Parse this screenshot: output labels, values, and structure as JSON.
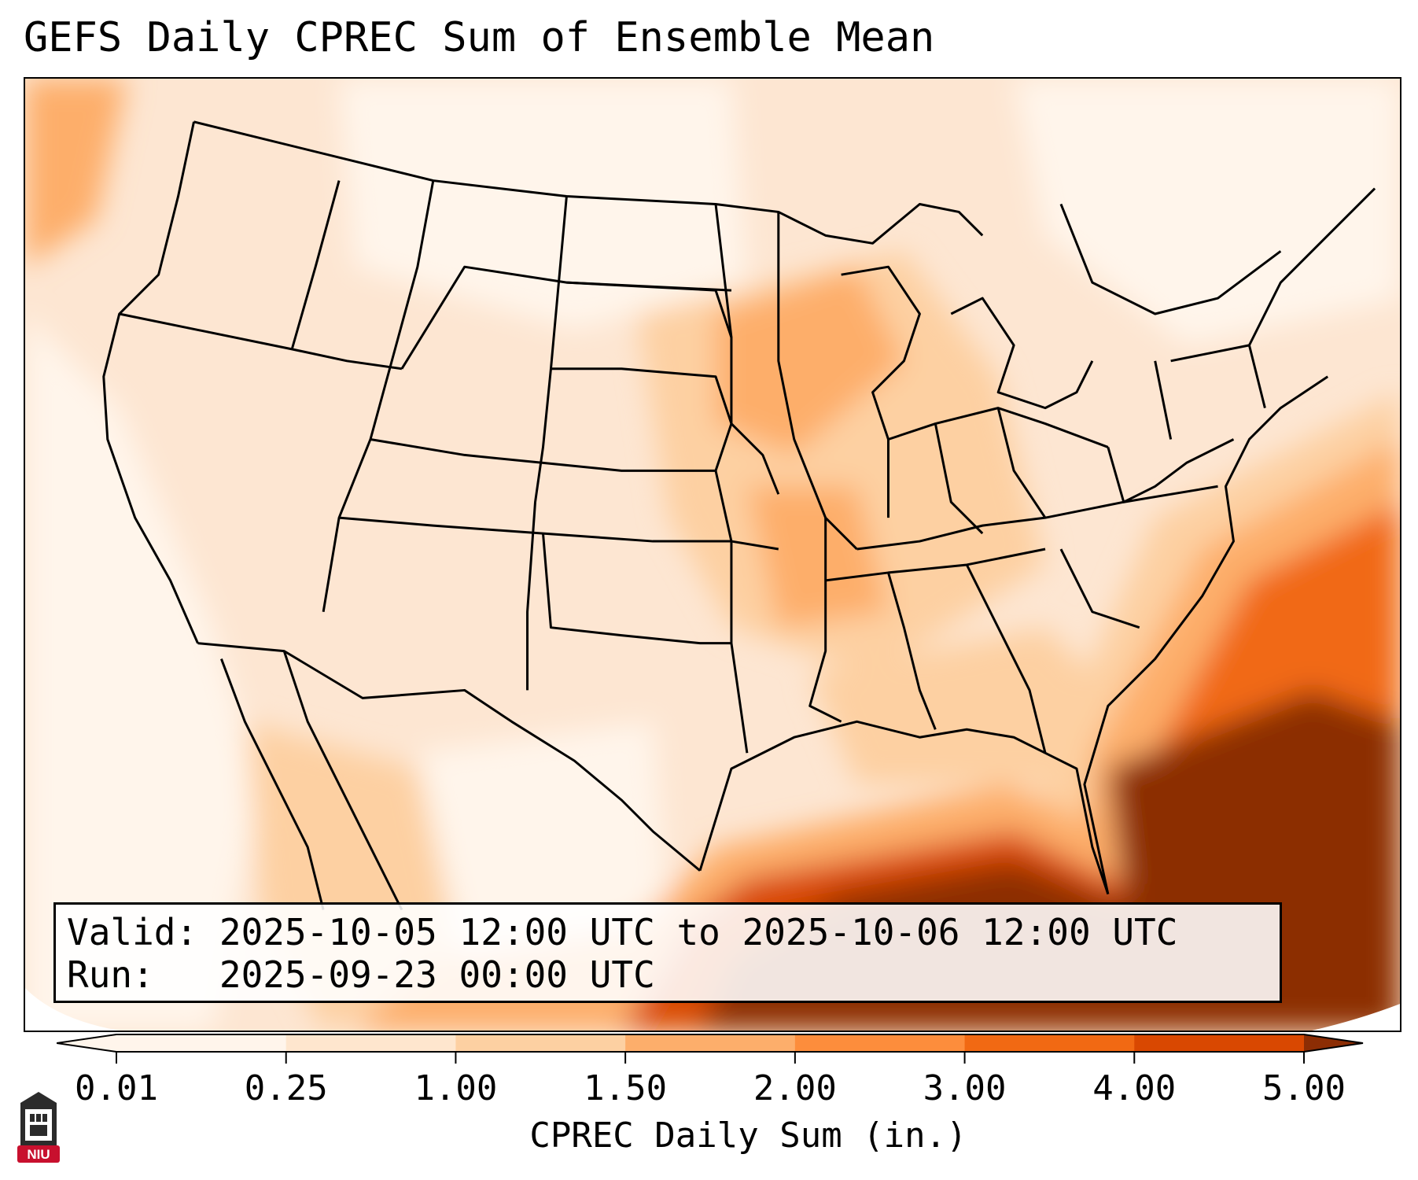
{
  "title": "GEFS Daily CPREC Sum of Ensemble Mean",
  "info": {
    "valid_label": "Valid:",
    "valid_value": "2025-10-05 12:00 UTC to 2025-10-06 12:00 UTC",
    "run_label": "Run:",
    "run_value": "2025-09-23 00:00 UTC"
  },
  "colorbar": {
    "label": "CPREC Daily Sum (in.)",
    "ticks": [
      "0.01",
      "0.25",
      "1.00",
      "1.50",
      "2.00",
      "3.00",
      "4.00",
      "5.00"
    ],
    "colors": [
      "#fff5eb",
      "#fee6ce",
      "#fdd0a2",
      "#fdae6b",
      "#fd8d3c",
      "#f16913",
      "#d94801",
      "#8c2d04"
    ]
  },
  "logo": {
    "text": "NIU",
    "color": "#c8102e",
    "icon": "university-tower-icon"
  },
  "map": {
    "region": "CONUS",
    "colors": {
      "light": "#fff5eb",
      "pale": "#fde6d2",
      "peach": "#fdd0a2",
      "orange": "#fdae6b",
      "deep_orange": "#f16913",
      "red_orange": "#d94801",
      "brown": "#8c2d04"
    }
  }
}
